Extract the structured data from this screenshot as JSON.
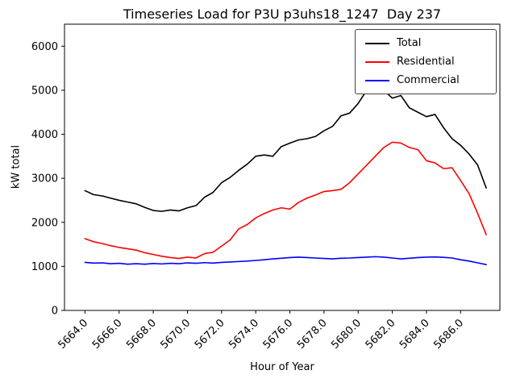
{
  "chart_data": {
    "type": "line",
    "title": "Timeseries Load for P3U p3uhs18_1247  Day 237",
    "xlabel": "Hour of Year",
    "ylabel": "kW total",
    "xlim": [
      5662.8,
      5688.3
    ],
    "ylim": [
      0,
      6500
    ],
    "grid": false,
    "legend_position": "upper right",
    "xticks": [
      5664,
      5666,
      5668,
      5670,
      5672,
      5674,
      5676,
      5678,
      5680,
      5682,
      5684,
      5686
    ],
    "xtick_labels": [
      "5664.0",
      "5666.0",
      "5668.0",
      "5670.0",
      "5672.0",
      "5674.0",
      "5676.0",
      "5678.0",
      "5680.0",
      "5682.0",
      "5684.0",
      "5686.0"
    ],
    "yticks": [
      0,
      1000,
      2000,
      3000,
      4000,
      5000,
      6000
    ],
    "ytick_labels": [
      "0",
      "1000",
      "2000",
      "3000",
      "4000",
      "5000",
      "6000"
    ],
    "x": [
      5664.0,
      5664.5,
      5665.0,
      5665.5,
      5666.0,
      5666.5,
      5667.0,
      5667.5,
      5668.0,
      5668.5,
      5669.0,
      5669.5,
      5670.0,
      5670.5,
      5671.0,
      5671.5,
      5672.0,
      5672.5,
      5673.0,
      5673.5,
      5674.0,
      5674.5,
      5675.0,
      5675.5,
      5676.0,
      5676.5,
      5677.0,
      5677.5,
      5678.0,
      5678.5,
      5679.0,
      5679.5,
      5680.0,
      5680.5,
      5681.0,
      5681.5,
      5682.0,
      5682.5,
      5683.0,
      5683.5,
      5684.0,
      5684.5,
      5685.0,
      5685.5,
      5686.0,
      5686.5,
      5687.0,
      5687.5
    ],
    "series": [
      {
        "name": "Total",
        "color": "#000000",
        "values": [
          2720,
          2630,
          2600,
          2550,
          2500,
          2460,
          2420,
          2340,
          2270,
          2250,
          2280,
          2260,
          2330,
          2380,
          2570,
          2680,
          2900,
          3020,
          3180,
          3320,
          3500,
          3530,
          3500,
          3720,
          3800,
          3870,
          3900,
          3950,
          4080,
          4180,
          4420,
          4480,
          4700,
          5000,
          5050,
          5000,
          4820,
          4880,
          4600,
          4500,
          4400,
          4450,
          4150,
          3900,
          3750,
          3550,
          3300,
          2780
        ]
      },
      {
        "name": "Residential",
        "color": "#ff0000",
        "values": [
          1630,
          1560,
          1520,
          1470,
          1430,
          1400,
          1370,
          1310,
          1270,
          1230,
          1200,
          1180,
          1210,
          1190,
          1290,
          1320,
          1460,
          1600,
          1850,
          1950,
          2100,
          2200,
          2280,
          2330,
          2300,
          2450,
          2550,
          2620,
          2700,
          2720,
          2750,
          2900,
          3100,
          3300,
          3500,
          3700,
          3820,
          3800,
          3700,
          3650,
          3400,
          3350,
          3220,
          3240,
          2950,
          2650,
          2200,
          1720
        ]
      },
      {
        "name": "Commercial",
        "color": "#0000ff",
        "values": [
          1090,
          1075,
          1080,
          1060,
          1070,
          1050,
          1060,
          1050,
          1065,
          1055,
          1070,
          1060,
          1080,
          1070,
          1085,
          1075,
          1090,
          1100,
          1110,
          1120,
          1135,
          1150,
          1170,
          1185,
          1200,
          1210,
          1200,
          1190,
          1180,
          1170,
          1185,
          1190,
          1200,
          1210,
          1220,
          1210,
          1190,
          1170,
          1185,
          1200,
          1210,
          1215,
          1205,
          1190,
          1150,
          1120,
          1080,
          1040
        ]
      }
    ]
  }
}
